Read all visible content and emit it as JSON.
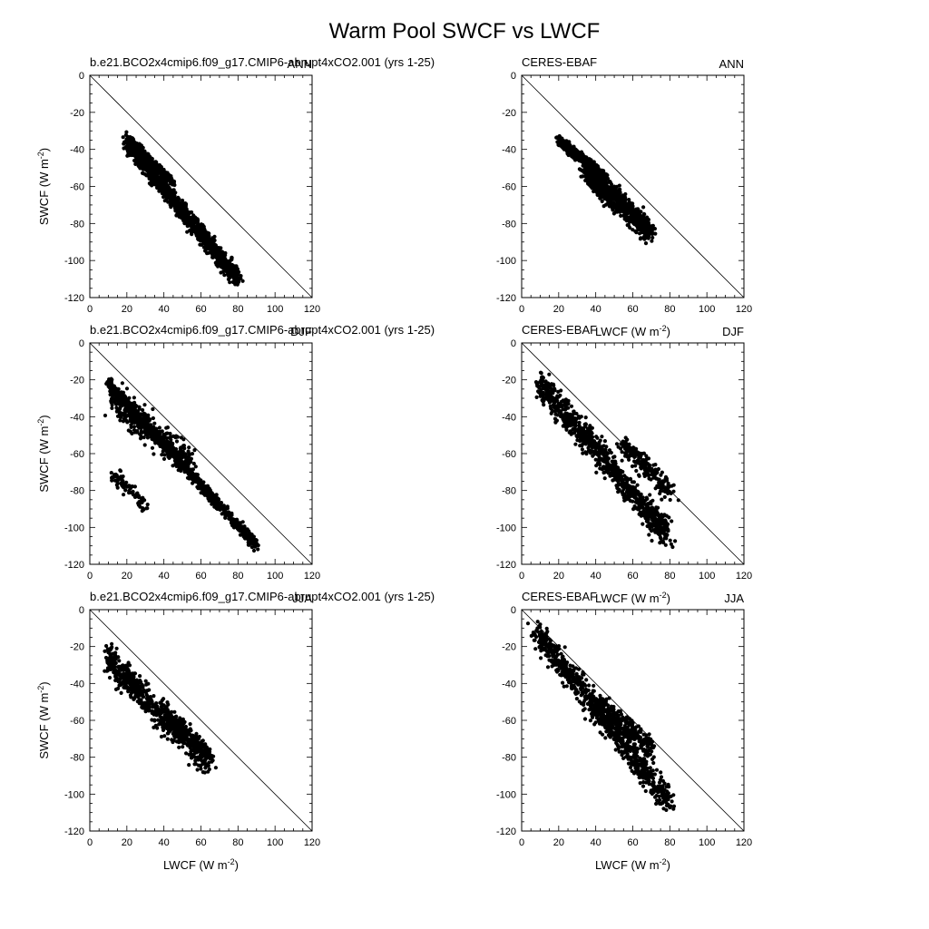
{
  "figure": {
    "title": "Warm Pool SWCF vs LWCF"
  },
  "chart_data": [
    {
      "type": "scatter",
      "panel_id": "p_ann_model",
      "left_label": "b.e21.BCO2x4cmip6.f09_g17.CMIP6-abrupt4xCO2.001 (yrs 1-25)",
      "season": "ANN",
      "xlabel": "",
      "ylabel": "SWCF (W m^-2)",
      "xlim": [
        0,
        120
      ],
      "ylim": [
        -120,
        0
      ],
      "xticks": [
        0,
        20,
        40,
        60,
        80,
        100,
        120
      ],
      "yticks": [
        0,
        -20,
        -40,
        -60,
        -80,
        -100,
        -120
      ],
      "reference_line": "y = -x",
      "clusters": [
        {
          "x": [
            20,
            80
          ],
          "y": [
            -36,
            -110
          ],
          "n": 1300,
          "spread": 4.5
        },
        {
          "x": [
            20,
            45
          ],
          "y": [
            -34,
            -58
          ],
          "n": 400,
          "spread": 2.5
        }
      ]
    },
    {
      "type": "scatter",
      "panel_id": "p_ann_obs",
      "left_label": "CERES-EBAF",
      "season": "ANN",
      "xlabel": "LWCF (W m^-2)",
      "ylabel": "",
      "xlim": [
        0,
        120
      ],
      "ylim": [
        -120,
        0
      ],
      "xticks": [
        0,
        20,
        40,
        60,
        80,
        100,
        120
      ],
      "yticks": [
        0,
        -20,
        -40,
        -60,
        -80,
        -100,
        -120
      ],
      "reference_line": "y = -x",
      "clusters": [
        {
          "x": [
            20,
            45
          ],
          "y": [
            -35,
            -55
          ],
          "n": 700,
          "spread": 2.5
        },
        {
          "x": [
            35,
            70
          ],
          "y": [
            -52,
            -85
          ],
          "n": 800,
          "spread": 6
        }
      ]
    },
    {
      "type": "scatter",
      "panel_id": "p_djf_model",
      "left_label": "b.e21.BCO2x4cmip6.f09_g17.CMIP6-abrupt4xCO2.001 (yrs 1-25)",
      "season": "DJF",
      "xlabel": "",
      "ylabel": "SWCF (W m^-2)",
      "xlim": [
        0,
        120
      ],
      "ylim": [
        -120,
        0
      ],
      "xticks": [
        0,
        20,
        40,
        60,
        80,
        100,
        120
      ],
      "yticks": [
        0,
        -20,
        -40,
        -60,
        -80,
        -100,
        -120
      ],
      "reference_line": "y = -x",
      "clusters": [
        {
          "x": [
            10,
            90
          ],
          "y": [
            -22,
            -110
          ],
          "n": 900,
          "spread": 3
        },
        {
          "x": [
            12,
            55
          ],
          "y": [
            -30,
            -65
          ],
          "n": 350,
          "spread": 8
        },
        {
          "x": [
            12,
            30
          ],
          "y": [
            -70,
            -88
          ],
          "n": 80,
          "spread": 4
        }
      ]
    },
    {
      "type": "scatter",
      "panel_id": "p_djf_obs",
      "left_label": "CERES-EBAF",
      "season": "DJF",
      "xlabel": "LWCF (W m^-2)",
      "ylabel": "",
      "xlim": [
        0,
        120
      ],
      "ylim": [
        -120,
        0
      ],
      "xticks": [
        0,
        20,
        40,
        60,
        80,
        100,
        120
      ],
      "yticks": [
        0,
        -20,
        -40,
        -60,
        -80,
        -100,
        -120
      ],
      "reference_line": "y = -x",
      "clusters": [
        {
          "x": [
            10,
            80
          ],
          "y": [
            -22,
            -105
          ],
          "n": 900,
          "spread": 7
        },
        {
          "x": [
            55,
            80
          ],
          "y": [
            -55,
            -80
          ],
          "n": 200,
          "spread": 6
        }
      ]
    },
    {
      "type": "scatter",
      "panel_id": "p_jja_model",
      "left_label": "b.e21.BCO2x4cmip6.f09_g17.CMIP6-abrupt4xCO2.001 (yrs 1-25)",
      "season": "JJA",
      "xlabel": "LWCF (W m^-2)",
      "ylabel": "SWCF (W m^-2)",
      "xlim": [
        0,
        120
      ],
      "ylim": [
        -120,
        0
      ],
      "xticks": [
        0,
        20,
        40,
        60,
        80,
        100,
        120
      ],
      "yticks": [
        0,
        -20,
        -40,
        -60,
        -80,
        -100,
        -120
      ],
      "reference_line": "y = -x",
      "clusters": [
        {
          "x": [
            10,
            65
          ],
          "y": [
            -28,
            -85
          ],
          "n": 450,
          "spread": 7
        },
        {
          "x": [
            10,
            30
          ],
          "y": [
            -25,
            -45
          ],
          "n": 120,
          "spread": 6
        },
        {
          "x": [
            40,
            65
          ],
          "y": [
            -55,
            -80
          ],
          "n": 250,
          "spread": 5
        }
      ]
    },
    {
      "type": "scatter",
      "panel_id": "p_jja_obs",
      "left_label": "CERES-EBAF",
      "season": "JJA",
      "xlabel": "LWCF (W m^-2)",
      "ylabel": "",
      "xlim": [
        0,
        120
      ],
      "ylim": [
        -120,
        0
      ],
      "xticks": [
        0,
        20,
        40,
        60,
        80,
        100,
        120
      ],
      "yticks": [
        0,
        -20,
        -40,
        -60,
        -80,
        -100,
        -120
      ],
      "reference_line": "y = -x",
      "clusters": [
        {
          "x": [
            8,
            80
          ],
          "y": [
            -12,
            -105
          ],
          "n": 750,
          "spread": 7
        },
        {
          "x": [
            40,
            70
          ],
          "y": [
            -50,
            -75
          ],
          "n": 300,
          "spread": 6
        }
      ]
    }
  ]
}
